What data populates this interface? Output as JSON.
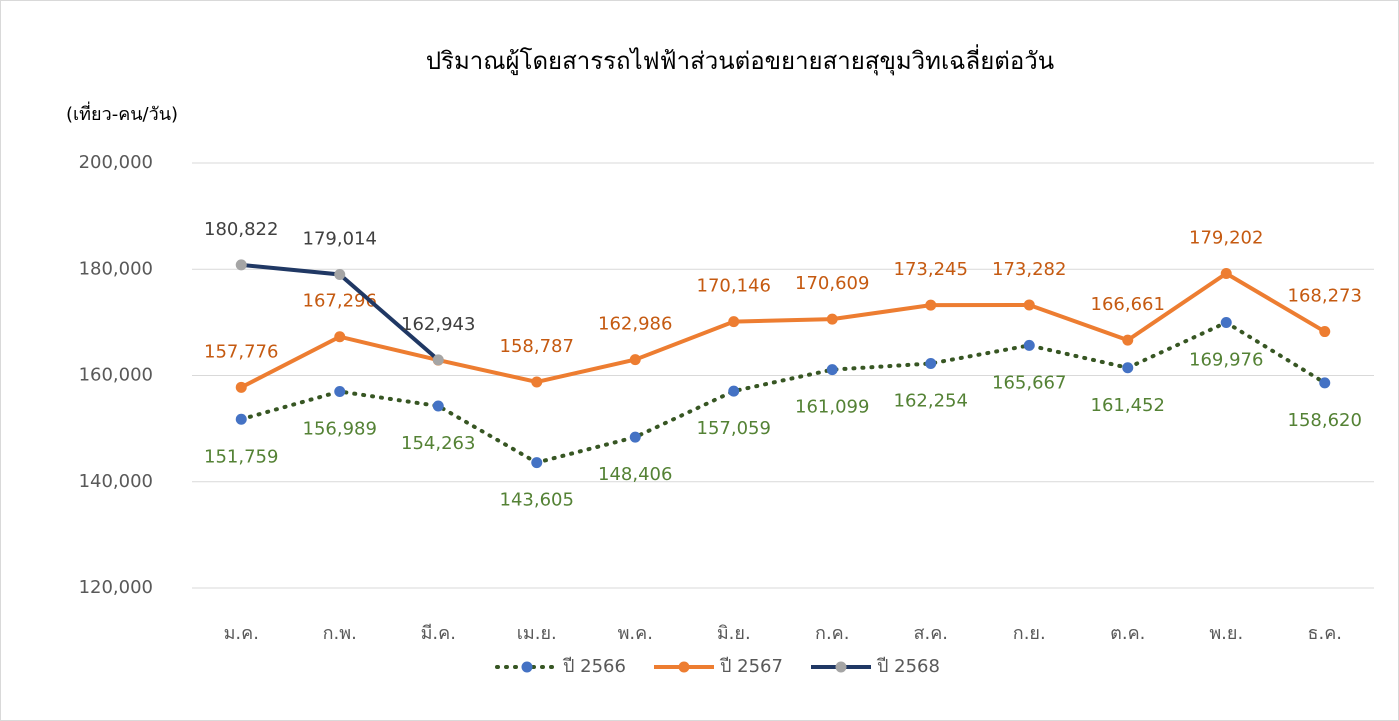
{
  "chart_data": {
    "type": "line",
    "title": "ปริมาณผู้โดยสารรถไฟฟ้าส่วนต่อขยายสายสุขุมวิทเฉลี่ยต่อวัน",
    "y_label": "(เที่ยว-คน/วัน)",
    "categories": [
      "ม.ค.",
      "ก.พ.",
      "มี.ค.",
      "เม.ย.",
      "พ.ค.",
      "มิ.ย.",
      "ก.ค.",
      "ส.ค.",
      "ก.ย.",
      "ต.ค.",
      "พ.ย.",
      "ธ.ค."
    ],
    "ylim": [
      120000,
      200000
    ],
    "yticks": [
      {
        "value": 120000,
        "label": "120,000"
      },
      {
        "value": 140000,
        "label": "140,000"
      },
      {
        "value": 160000,
        "label": "160,000"
      },
      {
        "value": 180000,
        "label": "180,000"
      },
      {
        "value": 200000,
        "label": "200,000"
      }
    ],
    "grid": true,
    "legend": "bottom",
    "series": [
      {
        "name": "ปี 2566",
        "color": "#375623",
        "marker_color": "#4472c4",
        "label_color": "#548235",
        "line_style": "dotted",
        "label_position": "below",
        "values": [
          151759,
          156989,
          154263,
          143605,
          148406,
          157059,
          161099,
          162254,
          165667,
          161452,
          169976,
          158620
        ],
        "value_labels": [
          "151,759",
          "156,989",
          "154,263",
          "143,605",
          "148,406",
          "157,059",
          "161,099",
          "162,254",
          "165,667",
          "161,452",
          "169,976",
          "158,620"
        ]
      },
      {
        "name": "ปี 2567",
        "color": "#ed7d31",
        "marker_color": "#ed7d31",
        "label_color": "#c55a11",
        "line_style": "solid",
        "label_position": "above",
        "values": [
          157776,
          167296,
          162900,
          158787,
          162986,
          170146,
          170609,
          173245,
          173282,
          166661,
          179202,
          168273
        ],
        "value_labels": [
          "157,776",
          "167,296",
          null,
          "158,787",
          "162,986",
          "170,146",
          "170,609",
          "173,245",
          "173,282",
          "166,661",
          "179,202",
          "168,273"
        ]
      },
      {
        "name": "ปี 2568",
        "color": "#203864",
        "marker_color": "#a5a5a5",
        "label_color": "#404040",
        "line_style": "solid",
        "label_position": "above",
        "values": [
          180822,
          179014,
          162943,
          null,
          null,
          null,
          null,
          null,
          null,
          null,
          null,
          null
        ],
        "value_labels": [
          "180,822",
          "179,014",
          "162,943",
          null,
          null,
          null,
          null,
          null,
          null,
          null,
          null,
          null
        ]
      }
    ]
  }
}
